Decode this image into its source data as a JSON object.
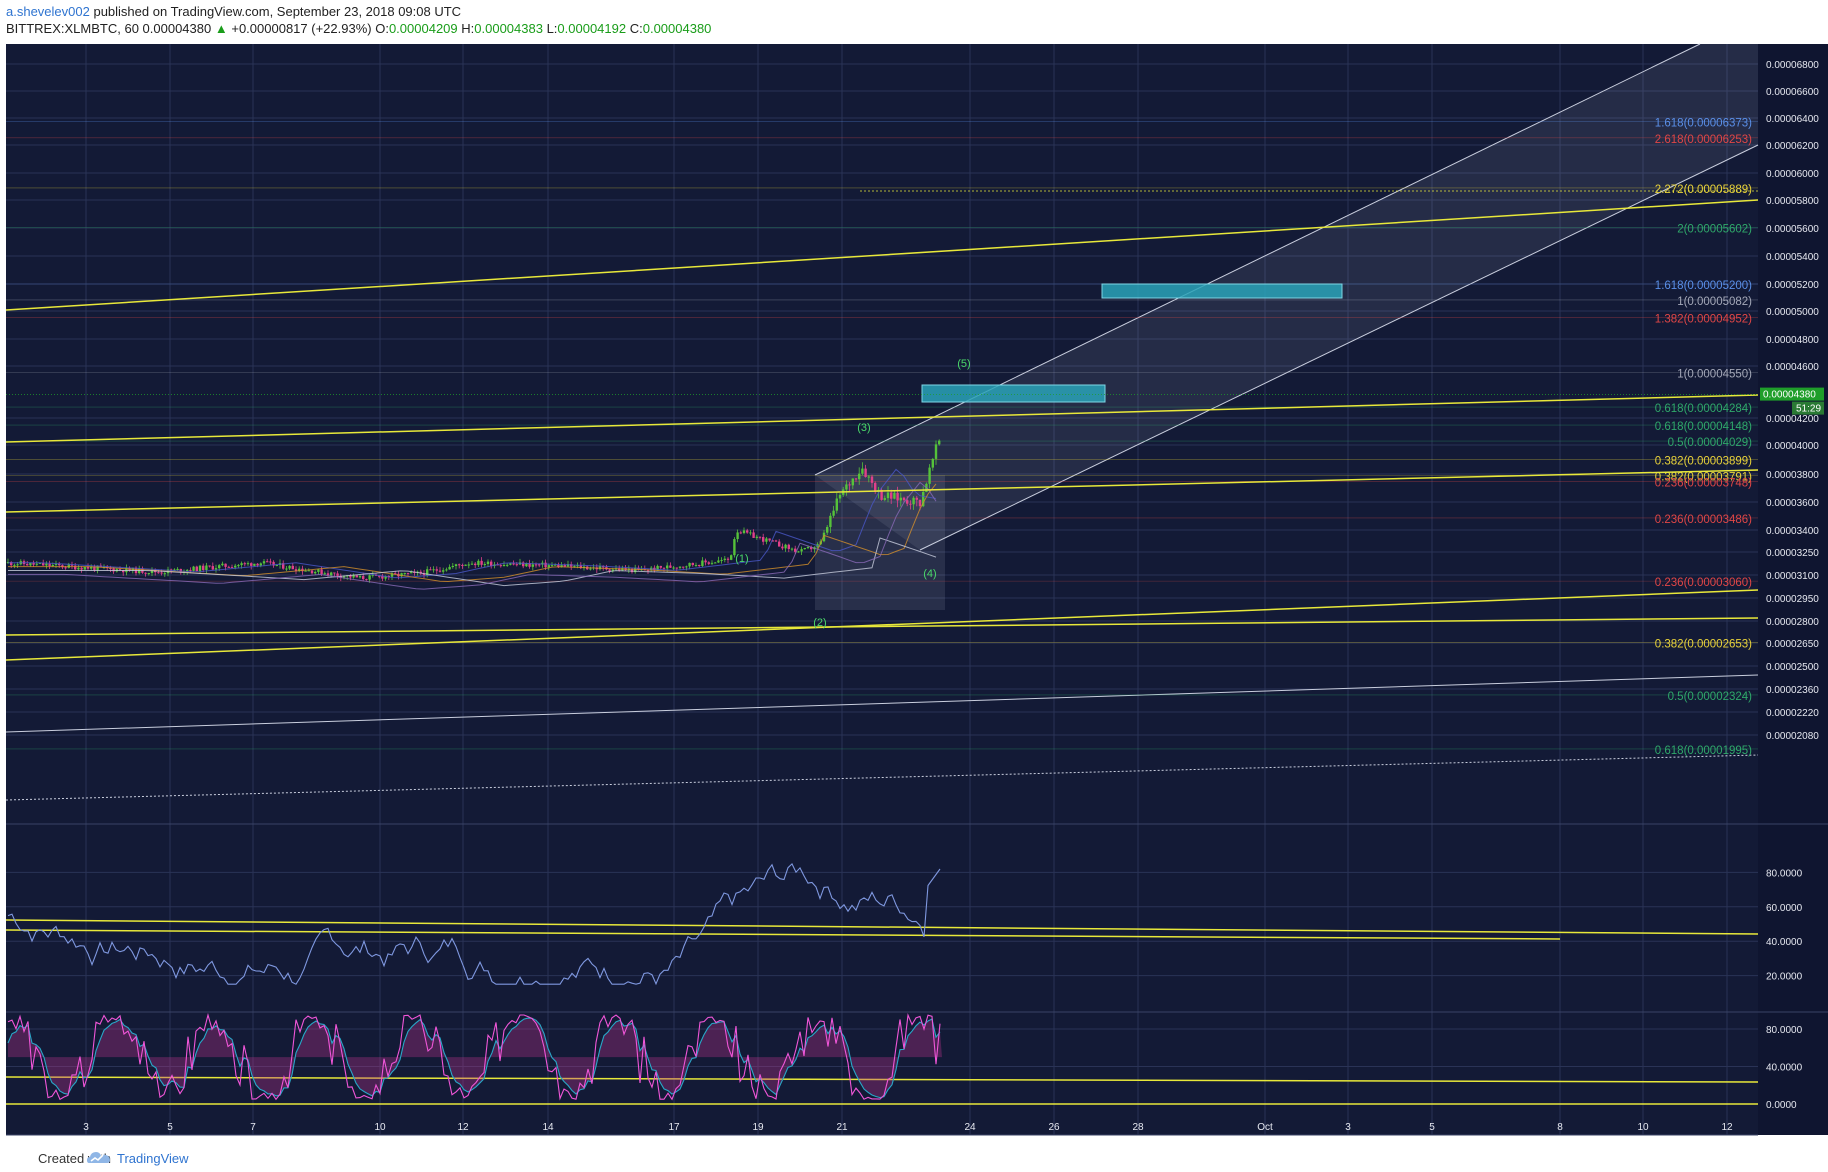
{
  "header": {
    "author": "a.shevelev002",
    "published": "published on TradingView.com, September 23, 2018 09:08 UTC",
    "symbol": "BITTREX:XLMBTC, 60",
    "last": "0.00004380",
    "change_arrow": "▲",
    "change": "+0.00000817 (+22.93%)",
    "o_label": "O:",
    "o": "0.00004209",
    "h_label": "H:",
    "h": "0.00004383",
    "l_label": "L:",
    "l": "0.00004192",
    "c_label": "C:",
    "c": "0.00004380"
  },
  "footer": {
    "created_with": "Created with",
    "brand": "TradingView"
  },
  "colors": {
    "background": "#131a36",
    "grid": "#2a3356",
    "candle_up": "#55c23a",
    "candle_down": "#e0408a",
    "trendline": "#e8e83a",
    "channel": "#c9cede",
    "target_box": "#2aa3b8",
    "rsi": "#7f98e0",
    "stoch_k": "#f056d8",
    "stoch_d": "#28a8c8",
    "fib_blue": "#5a8fe8",
    "fib_red": "#e04646",
    "fib_yellow": "#e8d23a",
    "fib_green": "#2fa86a",
    "fib_gray": "#a4a8b8",
    "price_badge": "#1f9e2a"
  },
  "chart_data": {
    "type": "candlestick",
    "price_axis": {
      "ticks": [
        "0.00006800",
        "0.00006600",
        "0.00006400",
        "0.00006200",
        "0.00006000",
        "0.00005800",
        "0.00005600",
        "0.00005400",
        "0.00005200",
        "0.00005000",
        "0.00004800",
        "0.00004600",
        "0.00004200",
        "0.00004000",
        "0.00003800",
        "0.00003600",
        "0.00003400",
        "0.00003250",
        "0.00003100",
        "0.00002950",
        "0.00002800",
        "0.00002650",
        "0.00002500",
        "0.00002360",
        "0.00002220",
        "0.00002080"
      ],
      "last_price": "0.00004380",
      "countdown": "51:29"
    },
    "time_axis": {
      "ticks": [
        "3",
        "5",
        "7",
        "10",
        "12",
        "14",
        "17",
        "19",
        "21",
        "24",
        "26",
        "28",
        "Oct",
        "3",
        "5",
        "8",
        "10",
        "12"
      ]
    },
    "fib_levels": [
      {
        "label": "1.618(0.00006373)",
        "color": "#5a8fe8"
      },
      {
        "label": "2.618(0.00006253)",
        "color": "#e04646"
      },
      {
        "label": "2.272(0.00005889)",
        "color": "#e8d23a"
      },
      {
        "label": "2(0.00005602)",
        "color": "#2fa86a"
      },
      {
        "label": "1.618(0.00005200)",
        "color": "#5a8fe8"
      },
      {
        "label": "1(0.00005082)",
        "color": "#a4a8b8"
      },
      {
        "label": "1.382(0.00004952)",
        "color": "#e04646"
      },
      {
        "label": "1(0.00004550)",
        "color": "#a4a8b8"
      },
      {
        "label": "0.618(0.00004284)",
        "color": "#2fa86a"
      },
      {
        "label": "0.618(0.00004148)",
        "color": "#2fa86a"
      },
      {
        "label": "0.5(0.00004029)",
        "color": "#2fa86a"
      },
      {
        "label": "0.382(0.00003899)",
        "color": "#e8d23a"
      },
      {
        "label": "0.382(0.00003791)",
        "color": "#e8d23a"
      },
      {
        "label": "0.236(0.00003748)",
        "color": "#e04646"
      },
      {
        "label": "0.236(0.00003486)",
        "color": "#e04646"
      },
      {
        "label": "0.236(0.00003060)",
        "color": "#e04646"
      },
      {
        "label": "0.382(0.00002653)",
        "color": "#e8d23a"
      },
      {
        "label": "0.5(0.00002324)",
        "color": "#2fa86a"
      },
      {
        "label": "0.618(0.00001995)",
        "color": "#2fa86a"
      }
    ],
    "wave_labels": [
      "(1)",
      "(2)",
      "(3)",
      "(4)",
      "(5)"
    ],
    "rsi": {
      "ticks": [
        "80.0000",
        "60.0000",
        "40.0000",
        "20.0000"
      ],
      "last": 84
    },
    "stoch_rsi": {
      "ticks": [
        "80.0000",
        "40.0000",
        "0.0000"
      ],
      "last": 88
    }
  }
}
